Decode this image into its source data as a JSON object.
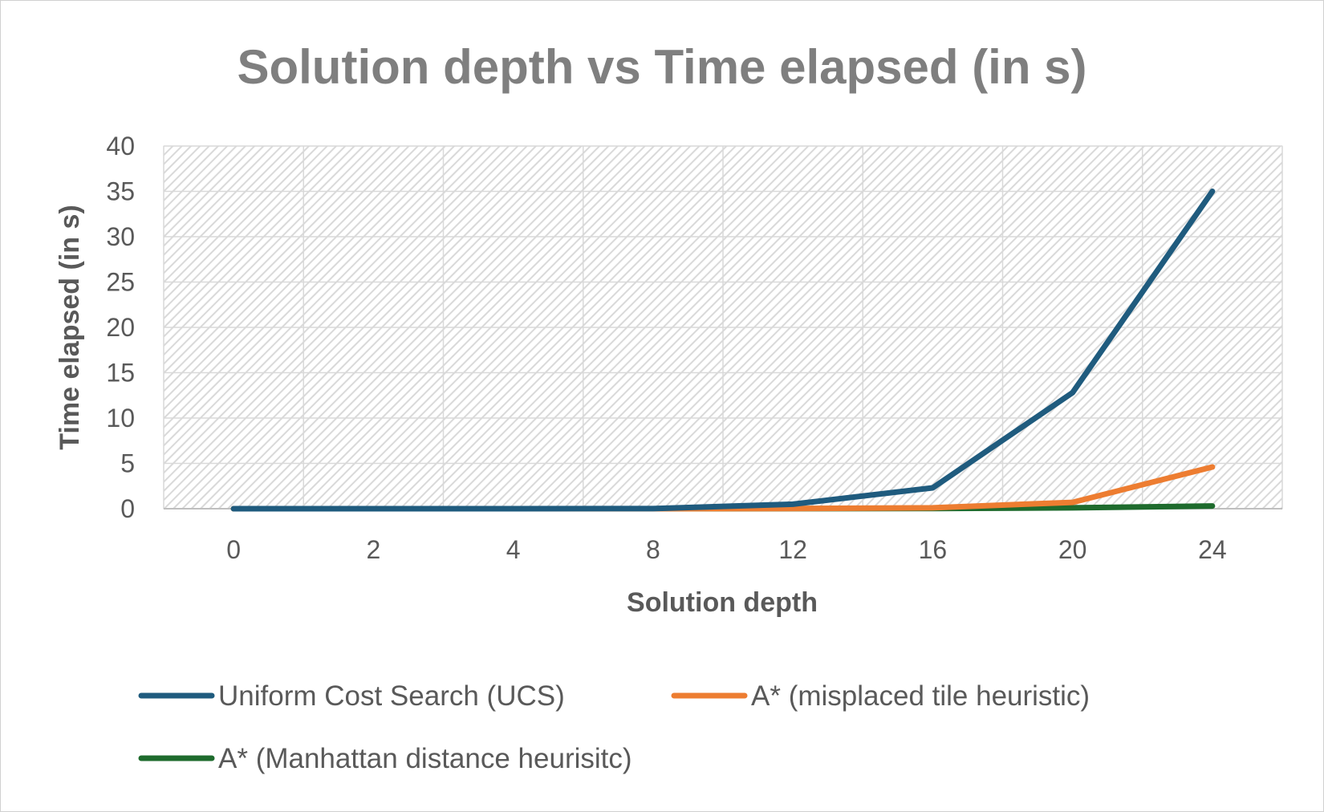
{
  "chart_data": {
    "type": "line",
    "title": "Solution depth vs Time elapsed (in s)",
    "xlabel": "Solution depth",
    "ylabel": "Time elapsed (in s)",
    "categories": [
      "0",
      "2",
      "4",
      "8",
      "12",
      "16",
      "20",
      "24"
    ],
    "ylim": [
      0,
      40
    ],
    "yticks": [
      "0",
      "5",
      "10",
      "15",
      "20",
      "25",
      "30",
      "35",
      "40"
    ],
    "grid": true,
    "legend": "bottom",
    "series": [
      {
        "name": "Uniform Cost Search (UCS)",
        "color": "#1f5b7e",
        "values": [
          0,
          0,
          0,
          0.01,
          0.5,
          2.3,
          12.8,
          35
        ]
      },
      {
        "name": "A* (misplaced tile heuristic)",
        "color": "#ed7d31",
        "values": [
          0,
          0,
          0,
          0,
          0.02,
          0.1,
          0.7,
          4.6
        ]
      },
      {
        "name": "A* (Manhattan distance heurisitc)",
        "color": "#1e6b2d",
        "values": [
          0,
          0,
          0,
          0,
          0.01,
          0.02,
          0.1,
          0.3
        ]
      }
    ]
  }
}
